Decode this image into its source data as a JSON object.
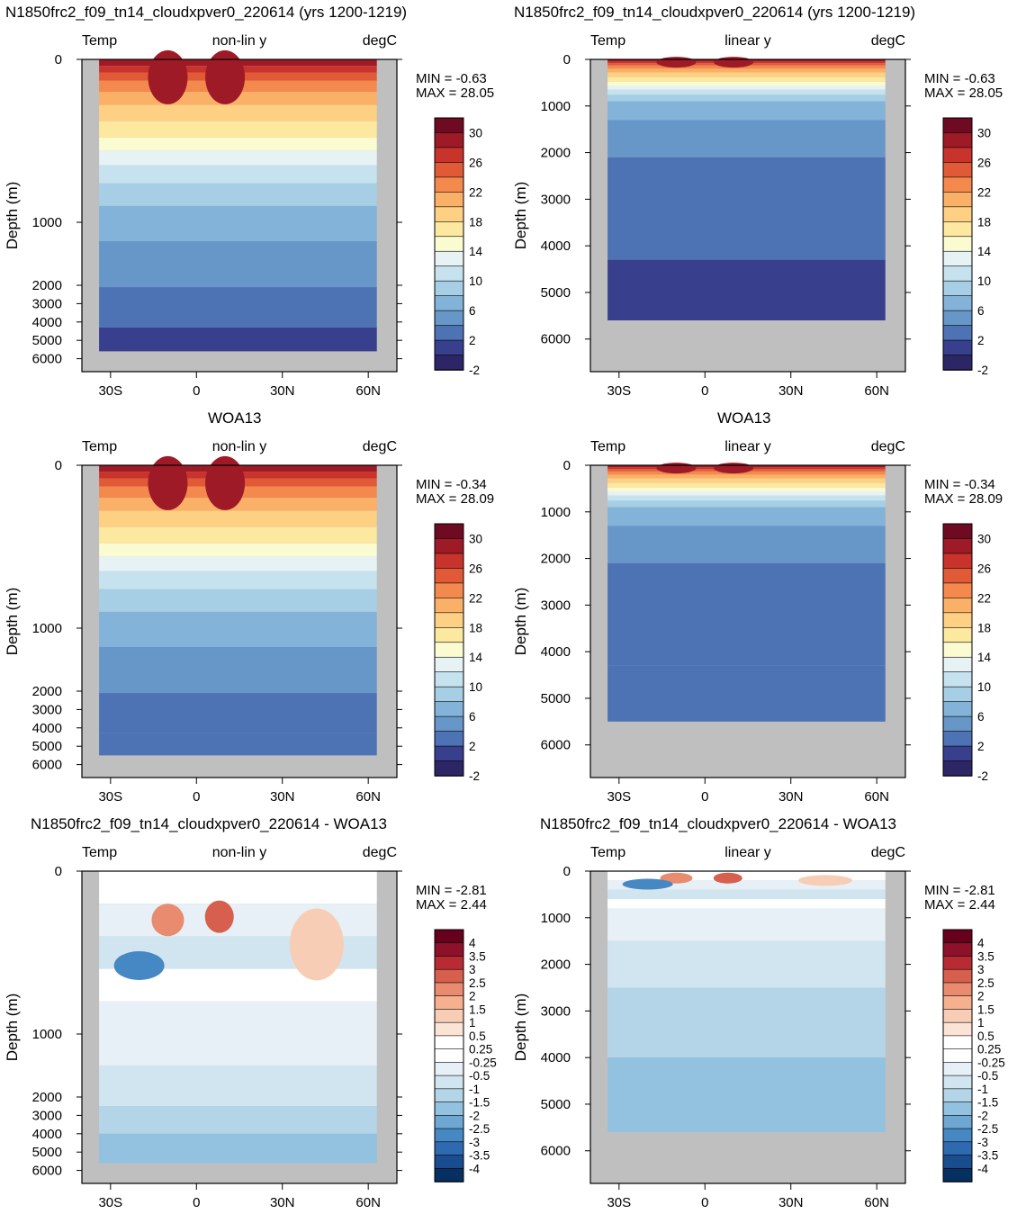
{
  "titles": {
    "model_left": "N1850frc2_f09_tn14_cloudxpver0_220614 (yrs 1200-1219)",
    "model_right": "N1850frc2_f09_tn14_cloudxpver0_220614 (yrs 1200-1219)",
    "obs_left": "WOA13",
    "obs_right": "WOA13",
    "diff_left": "N1850frc2_f09_tn14_cloudxpver0_220614 - WOA13",
    "diff_right": "N1850frc2_f09_tn14_cloudxpver0_220614 - WOA13"
  },
  "labels": {
    "var": "Temp",
    "nonlin": "non-lin y",
    "linear": "linear y",
    "units": "degC",
    "ylabel": "Depth (m)",
    "min_label": "MIN =",
    "max_label": "MAX ="
  },
  "stats": {
    "model": {
      "min": "-0.63",
      "max": "28.05"
    },
    "obs": {
      "min": "-0.34",
      "max": "28.09"
    },
    "diff": {
      "min": "-2.81",
      "max": "2.44"
    }
  },
  "colors": {
    "land": "#bfbfbf",
    "temp_scale": [
      "#2c2566",
      "#383f8c",
      "#4e73b5",
      "#6796c8",
      "#83b3d8",
      "#a6cfe5",
      "#c6e2ee",
      "#e7f2f5",
      "#fbfbd2",
      "#fde8a0",
      "#fdd084",
      "#fbb067",
      "#f3894c",
      "#e05a37",
      "#c8332c",
      "#9e1a27",
      "#6e0b22"
    ],
    "diff_scale": [
      "#053061",
      "#1a4d8f",
      "#2e6ab0",
      "#4688c3",
      "#6ea8d2",
      "#92c2df",
      "#b4d5e8",
      "#d1e5f0",
      "#e6f0f6",
      "#ffffff",
      "#ffffff",
      "#fbe3d5",
      "#f7cdb5",
      "#f4b08f",
      "#e88b6e",
      "#d6604d",
      "#b92b33",
      "#8d1128",
      "#67001f"
    ]
  },
  "chart_data": [
    {
      "type": "heatmap",
      "name": "model-nonlin",
      "title": "N1850frc2_f09_tn14_cloudxpver0_220614 (yrs 1200-1219)",
      "xlabel": "",
      "ylabel": "Depth (m)",
      "xticks": [
        "30S",
        "0",
        "30N",
        "60N"
      ],
      "yticks": [
        "0",
        "1000",
        "2000",
        "3000",
        "4000",
        "5000",
        "6000"
      ],
      "yscale": "non-linear",
      "colorbar_labels": [
        "30",
        "26",
        "22",
        "18",
        "14",
        "10",
        "6",
        "2",
        "-2"
      ],
      "min": -0.63,
      "max": 28.05
    },
    {
      "type": "heatmap",
      "name": "model-linear",
      "title": "N1850frc2_f09_tn14_cloudxpver0_220614 (yrs 1200-1219)",
      "xlabel": "",
      "ylabel": "Depth (m)",
      "xticks": [
        "30S",
        "0",
        "30N",
        "60N"
      ],
      "yticks": [
        "0",
        "1000",
        "2000",
        "3000",
        "4000",
        "5000",
        "6000"
      ],
      "yscale": "linear",
      "colorbar_labels": [
        "30",
        "26",
        "22",
        "18",
        "14",
        "10",
        "6",
        "2",
        "-2"
      ],
      "min": -0.63,
      "max": 28.05
    },
    {
      "type": "heatmap",
      "name": "obs-nonlin",
      "title": "WOA13",
      "ylabel": "Depth (m)",
      "xticks": [
        "30S",
        "0",
        "30N",
        "60N"
      ],
      "yticks": [
        "0",
        "1000",
        "2000",
        "3000",
        "4000",
        "5000",
        "6000"
      ],
      "yscale": "non-linear",
      "colorbar_labels": [
        "30",
        "26",
        "22",
        "18",
        "14",
        "10",
        "6",
        "2",
        "-2"
      ],
      "min": -0.34,
      "max": 28.09
    },
    {
      "type": "heatmap",
      "name": "obs-linear",
      "title": "WOA13",
      "ylabel": "Depth (m)",
      "xticks": [
        "30S",
        "0",
        "30N",
        "60N"
      ],
      "yticks": [
        "0",
        "1000",
        "2000",
        "3000",
        "4000",
        "5000",
        "6000"
      ],
      "yscale": "linear",
      "colorbar_labels": [
        "30",
        "26",
        "22",
        "18",
        "14",
        "10",
        "6",
        "2",
        "-2"
      ],
      "min": -0.34,
      "max": 28.09
    },
    {
      "type": "heatmap",
      "name": "diff-nonlin",
      "title": "N1850frc2_f09_tn14_cloudxpver0_220614 - WOA13",
      "ylabel": "Depth (m)",
      "xticks": [
        "30S",
        "0",
        "30N",
        "60N"
      ],
      "yticks": [
        "0",
        "1000",
        "2000",
        "3000",
        "4000",
        "5000",
        "6000"
      ],
      "yscale": "non-linear",
      "colorbar_labels": [
        "4",
        "3.5",
        "3",
        "2.5",
        "2",
        "1.5",
        "1",
        "0.5",
        "0.25",
        "-0.25",
        "-0.5",
        "-1",
        "-1.5",
        "-2",
        "-2.5",
        "-3",
        "-3.5",
        "-4"
      ],
      "min": -2.81,
      "max": 2.44
    },
    {
      "type": "heatmap",
      "name": "diff-linear",
      "title": "N1850frc2_f09_tn14_cloudxpver0_220614 - WOA13",
      "ylabel": "Depth (m)",
      "xticks": [
        "30S",
        "0",
        "30N",
        "60N"
      ],
      "yticks": [
        "0",
        "1000",
        "2000",
        "3000",
        "4000",
        "5000",
        "6000"
      ],
      "yscale": "linear",
      "colorbar_labels": [
        "4",
        "3.5",
        "3",
        "2.5",
        "2",
        "1.5",
        "1",
        "0.5",
        "0.25",
        "-0.25",
        "-0.5",
        "-1",
        "-1.5",
        "-2",
        "-2.5",
        "-3",
        "-3.5",
        "-4"
      ],
      "min": -2.81,
      "max": 2.44
    }
  ]
}
